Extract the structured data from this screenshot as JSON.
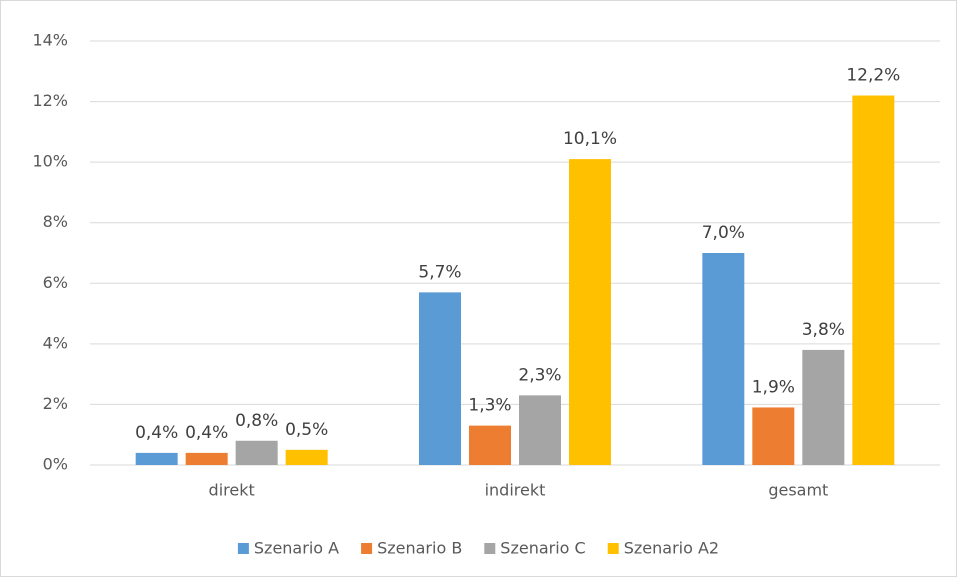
{
  "chart_data": {
    "type": "bar",
    "categories": [
      "direkt",
      "indirekt",
      "gesamt"
    ],
    "series": [
      {
        "name": "Szenario A",
        "color": "#5b9bd5",
        "values": [
          0.4,
          5.7,
          7.0
        ],
        "value_labels": [
          "0,4%",
          "5,7%",
          "7,0%"
        ]
      },
      {
        "name": "Szenario B",
        "color": "#ed7d31",
        "values": [
          0.4,
          1.3,
          1.9
        ],
        "value_labels": [
          "0,4%",
          "1,3%",
          "1,9%"
        ]
      },
      {
        "name": "Szenario C",
        "color": "#a5a5a5",
        "values": [
          0.8,
          2.3,
          3.8
        ],
        "value_labels": [
          "0,8%",
          "2,3%",
          "3,8%"
        ]
      },
      {
        "name": "Szenario A2",
        "color": "#ffc000",
        "values": [
          0.5,
          10.1,
          12.2
        ],
        "value_labels": [
          "0,5%",
          "10,1%",
          "12,2%"
        ]
      }
    ],
    "ylim": [
      0,
      14
    ],
    "yticks": [
      {
        "value": 0,
        "label": "0%"
      },
      {
        "value": 2,
        "label": "2%"
      },
      {
        "value": 4,
        "label": "4%"
      },
      {
        "value": 6,
        "label": "6%"
      },
      {
        "value": 8,
        "label": "8%"
      },
      {
        "value": 10,
        "label": "10%"
      },
      {
        "value": 12,
        "label": "12%"
      },
      {
        "value": 14,
        "label": "14%"
      }
    ],
    "grid": true,
    "legend": "bottom"
  }
}
